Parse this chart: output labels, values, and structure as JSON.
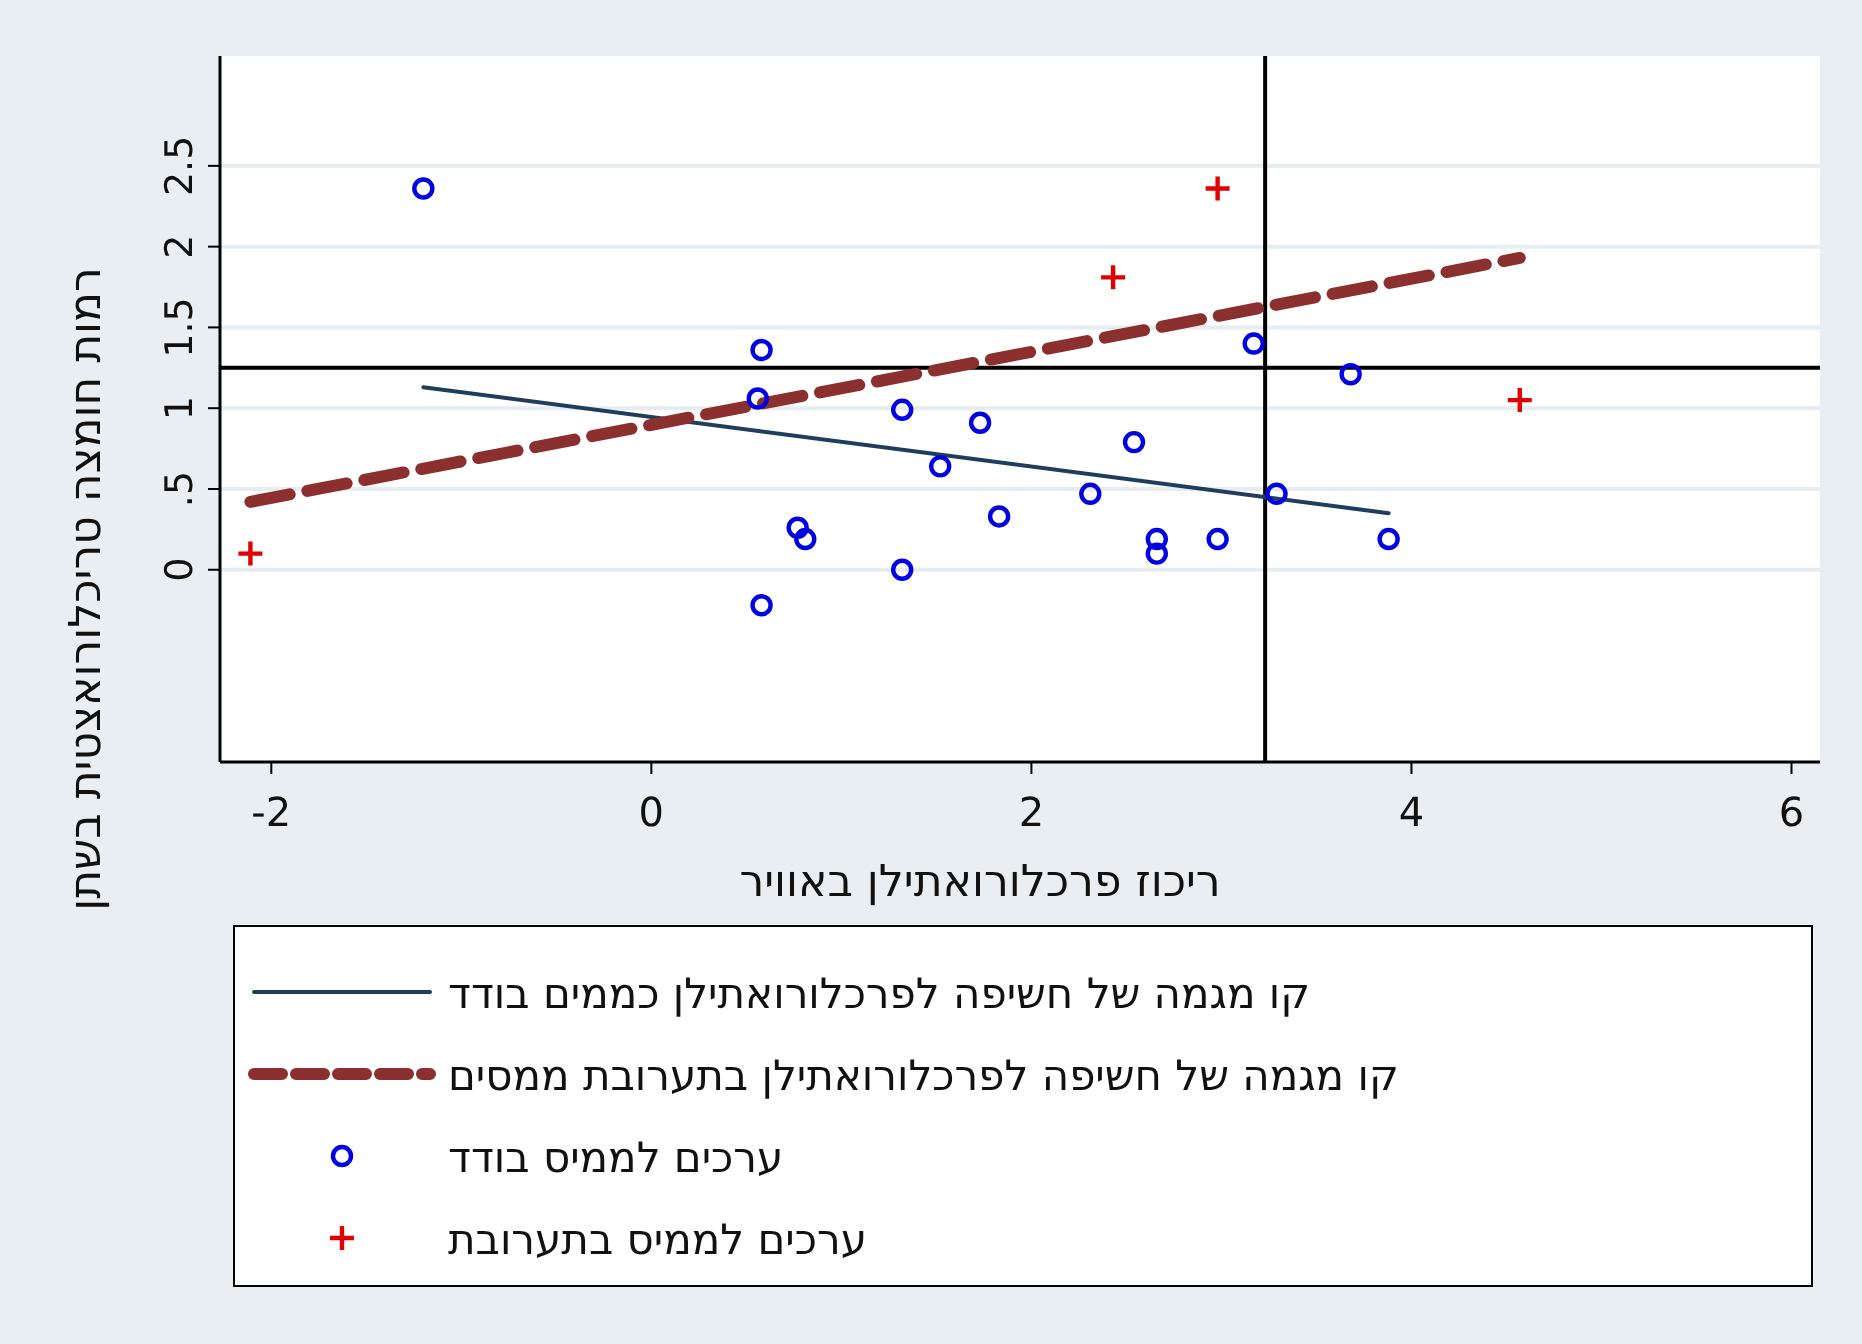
{
  "chart_data": {
    "type": "scatter",
    "xlabel": "ריכוז פרכלורואתילן באוויר",
    "ylabel": "רמות חומצה טריכלורואצטית בשתן",
    "xlim": [
      -2.27,
      6.15
    ],
    "ylim": [
      -1.19,
      3.18
    ],
    "xticks": [
      -2,
      0,
      2,
      4,
      6
    ],
    "yticks": [
      0,
      {
        "value": 0.5,
        "label": ".5"
      },
      1,
      1.5,
      2,
      2.5
    ],
    "grid": "y",
    "legend": "bottom",
    "ref_lines": [
      {
        "axis": "x",
        "value": 3.23,
        "color": "#000000"
      },
      {
        "axis": "y",
        "value": 1.25,
        "color": "#000000"
      }
    ],
    "series": [
      {
        "name": "קו מגמה של חשיפה לפרכלורואתילן כממים בודד",
        "type": "line",
        "color": "#1f3d5c",
        "line_style": "solid",
        "x": [
          -1.2,
          3.88
        ],
        "values": [
          1.13,
          0.35
        ]
      },
      {
        "name": "קו מגמה של חשיפה לפרכלורואתילן בתערובת ממסים",
        "type": "line",
        "color": "#8b2f2f",
        "line_style": "dashed",
        "x": [
          -2.11,
          4.57
        ],
        "values": [
          0.42,
          1.93
        ]
      },
      {
        "name": "ערכים לממיס בודד",
        "type": "scatter",
        "marker": "circle",
        "color": "#0000e0",
        "x": [
          -1.2,
          0.58,
          0.56,
          1.32,
          1.73,
          1.52,
          2.54,
          2.31,
          0.77,
          0.81,
          0.58,
          1.32,
          1.83,
          2.66,
          2.66,
          2.98,
          3.17,
          3.29,
          3.68,
          3.88
        ],
        "values": [
          2.36,
          1.36,
          1.06,
          0.99,
          0.91,
          0.64,
          0.79,
          0.47,
          0.26,
          0.19,
          -0.22,
          0.0,
          0.33,
          0.19,
          0.1,
          0.19,
          1.4,
          0.47,
          1.21,
          0.19
        ]
      },
      {
        "name": "ערכים לממיס בתערובת",
        "type": "scatter",
        "marker": "cross",
        "color": "#e00000",
        "x": [
          -2.11,
          2.43,
          2.98,
          4.57
        ],
        "values": [
          0.1,
          1.81,
          2.36,
          1.05
        ]
      }
    ]
  }
}
